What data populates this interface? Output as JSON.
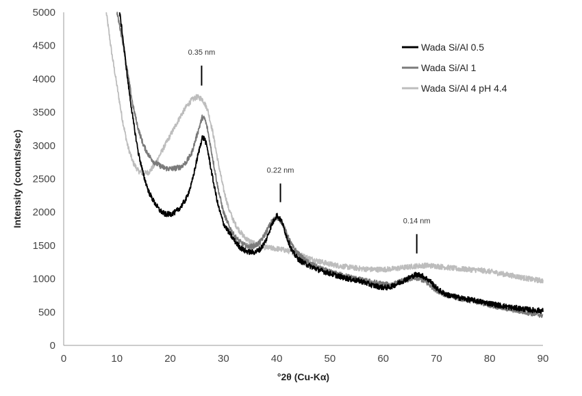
{
  "chart_data": {
    "type": "line",
    "title": "",
    "xlabel": "°2θ (Cu-Kα)",
    "ylabel": "Intensity (counts/sec)",
    "xlim": [
      0,
      90
    ],
    "ylim": [
      0,
      5000
    ],
    "xticks": [
      0,
      10,
      20,
      30,
      40,
      50,
      60,
      70,
      80,
      90
    ],
    "yticks": [
      0,
      500,
      1000,
      1500,
      2000,
      2500,
      3000,
      3500,
      4000,
      4500,
      5000
    ],
    "grid": false,
    "legend_position": "top-right",
    "series": [
      {
        "name": "Wada Si/Al 0.5",
        "color": "#000000",
        "noise": 40,
        "points": [
          [
            10.5,
            5000
          ],
          [
            11,
            4700
          ],
          [
            12,
            4000
          ],
          [
            13,
            3400
          ],
          [
            14,
            2900
          ],
          [
            15,
            2550
          ],
          [
            16,
            2300
          ],
          [
            17,
            2150
          ],
          [
            18,
            2030
          ],
          [
            19,
            1970
          ],
          [
            20,
            1970
          ],
          [
            21,
            2000
          ],
          [
            22,
            2080
          ],
          [
            23,
            2200
          ],
          [
            24,
            2420
          ],
          [
            25,
            2780
          ],
          [
            26,
            3120
          ],
          [
            26.5,
            3100
          ],
          [
            27,
            2950
          ],
          [
            28,
            2500
          ],
          [
            29,
            2100
          ],
          [
            30,
            1830
          ],
          [
            31,
            1700
          ],
          [
            32,
            1580
          ],
          [
            33,
            1480
          ],
          [
            34,
            1420
          ],
          [
            35,
            1400
          ],
          [
            36,
            1400
          ],
          [
            37,
            1450
          ],
          [
            38,
            1580
          ],
          [
            39,
            1800
          ],
          [
            40,
            1960
          ],
          [
            41,
            1850
          ],
          [
            42,
            1600
          ],
          [
            43,
            1400
          ],
          [
            44,
            1300
          ],
          [
            45,
            1240
          ],
          [
            46,
            1200
          ],
          [
            48,
            1130
          ],
          [
            50,
            1080
          ],
          [
            52,
            1030
          ],
          [
            54,
            990
          ],
          [
            56,
            960
          ],
          [
            58,
            900
          ],
          [
            60,
            870
          ],
          [
            61,
            870
          ],
          [
            62,
            900
          ],
          [
            63,
            940
          ],
          [
            64,
            980
          ],
          [
            65,
            1020
          ],
          [
            66,
            1060
          ],
          [
            67,
            1060
          ],
          [
            68,
            1010
          ],
          [
            69,
            950
          ],
          [
            70,
            860
          ],
          [
            71,
            800
          ],
          [
            72,
            760
          ],
          [
            74,
            720
          ],
          [
            76,
            690
          ],
          [
            78,
            660
          ],
          [
            80,
            630
          ],
          [
            82,
            600
          ],
          [
            84,
            570
          ],
          [
            86,
            550
          ],
          [
            88,
            530
          ],
          [
            90,
            520
          ]
        ]
      },
      {
        "name": "Wada Si/Al 1",
        "color": "#7a7a7a",
        "noise": 40,
        "points": [
          [
            10,
            5000
          ],
          [
            11,
            4600
          ],
          [
            12,
            4100
          ],
          [
            13,
            3600
          ],
          [
            14,
            3250
          ],
          [
            15,
            3000
          ],
          [
            16,
            2850
          ],
          [
            17,
            2750
          ],
          [
            18,
            2700
          ],
          [
            19,
            2660
          ],
          [
            20,
            2650
          ],
          [
            21,
            2660
          ],
          [
            22,
            2680
          ],
          [
            23,
            2750
          ],
          [
            24,
            2880
          ],
          [
            25,
            3150
          ],
          [
            26,
            3420
          ],
          [
            26.5,
            3400
          ],
          [
            27,
            3250
          ],
          [
            28,
            2800
          ],
          [
            29,
            2350
          ],
          [
            30,
            2000
          ],
          [
            31,
            1800
          ],
          [
            32,
            1650
          ],
          [
            33,
            1560
          ],
          [
            34,
            1500
          ],
          [
            35,
            1480
          ],
          [
            36,
            1500
          ],
          [
            37,
            1560
          ],
          [
            38,
            1700
          ],
          [
            39,
            1850
          ],
          [
            40,
            1930
          ],
          [
            41,
            1850
          ],
          [
            42,
            1650
          ],
          [
            43,
            1480
          ],
          [
            44,
            1380
          ],
          [
            45,
            1300
          ],
          [
            46,
            1240
          ],
          [
            48,
            1160
          ],
          [
            50,
            1100
          ],
          [
            52,
            1060
          ],
          [
            54,
            1020
          ],
          [
            56,
            980
          ],
          [
            58,
            950
          ],
          [
            60,
            920
          ],
          [
            61,
            910
          ],
          [
            62,
            920
          ],
          [
            63,
            950
          ],
          [
            64,
            980
          ],
          [
            65,
            1000
          ],
          [
            66,
            1010
          ],
          [
            67,
            1000
          ],
          [
            68,
            950
          ],
          [
            69,
            890
          ],
          [
            70,
            830
          ],
          [
            71,
            790
          ],
          [
            72,
            750
          ],
          [
            74,
            710
          ],
          [
            76,
            680
          ],
          [
            78,
            650
          ],
          [
            80,
            610
          ],
          [
            82,
            570
          ],
          [
            84,
            540
          ],
          [
            86,
            510
          ],
          [
            88,
            480
          ],
          [
            90,
            450
          ]
        ]
      },
      {
        "name": "Wada Si/Al 4 pH 4.4",
        "color": "#bdbdbd",
        "noise": 40,
        "points": [
          [
            8,
            5000
          ],
          [
            9,
            4400
          ],
          [
            10,
            3900
          ],
          [
            11,
            3400
          ],
          [
            12,
            3000
          ],
          [
            13,
            2750
          ],
          [
            14,
            2620
          ],
          [
            15,
            2580
          ],
          [
            16,
            2600
          ],
          [
            17,
            2700
          ],
          [
            18,
            2850
          ],
          [
            19,
            3000
          ],
          [
            20,
            3150
          ],
          [
            21,
            3300
          ],
          [
            22,
            3450
          ],
          [
            23,
            3580
          ],
          [
            24,
            3680
          ],
          [
            25,
            3730
          ],
          [
            26,
            3700
          ],
          [
            27,
            3550
          ],
          [
            28,
            3200
          ],
          [
            29,
            2750
          ],
          [
            30,
            2350
          ],
          [
            31,
            2050
          ],
          [
            32,
            1850
          ],
          [
            33,
            1720
          ],
          [
            34,
            1620
          ],
          [
            35,
            1560
          ],
          [
            36,
            1520
          ],
          [
            37,
            1490
          ],
          [
            38,
            1470
          ],
          [
            39,
            1460
          ],
          [
            40,
            1450
          ],
          [
            41,
            1440
          ],
          [
            42,
            1420
          ],
          [
            43,
            1400
          ],
          [
            44,
            1370
          ],
          [
            45,
            1340
          ],
          [
            46,
            1310
          ],
          [
            48,
            1260
          ],
          [
            50,
            1220
          ],
          [
            52,
            1190
          ],
          [
            54,
            1170
          ],
          [
            56,
            1150
          ],
          [
            58,
            1140
          ],
          [
            60,
            1140
          ],
          [
            62,
            1150
          ],
          [
            64,
            1170
          ],
          [
            66,
            1190
          ],
          [
            68,
            1200
          ],
          [
            70,
            1190
          ],
          [
            72,
            1170
          ],
          [
            74,
            1150
          ],
          [
            76,
            1140
          ],
          [
            78,
            1130
          ],
          [
            80,
            1110
          ],
          [
            82,
            1080
          ],
          [
            84,
            1050
          ],
          [
            86,
            1020
          ],
          [
            88,
            990
          ],
          [
            90,
            970
          ]
        ]
      }
    ],
    "annotations": [
      {
        "text": "0.35 nm",
        "x": 25.9,
        "y_line_top": 4200,
        "y_line_bottom": 3900
      },
      {
        "text": "0.22 nm",
        "x": 40.7,
        "y_line_top": 2430,
        "y_line_bottom": 2150
      },
      {
        "text": "0.14 nm",
        "x": 66.3,
        "y_line_top": 1670,
        "y_line_bottom": 1380
      }
    ]
  }
}
